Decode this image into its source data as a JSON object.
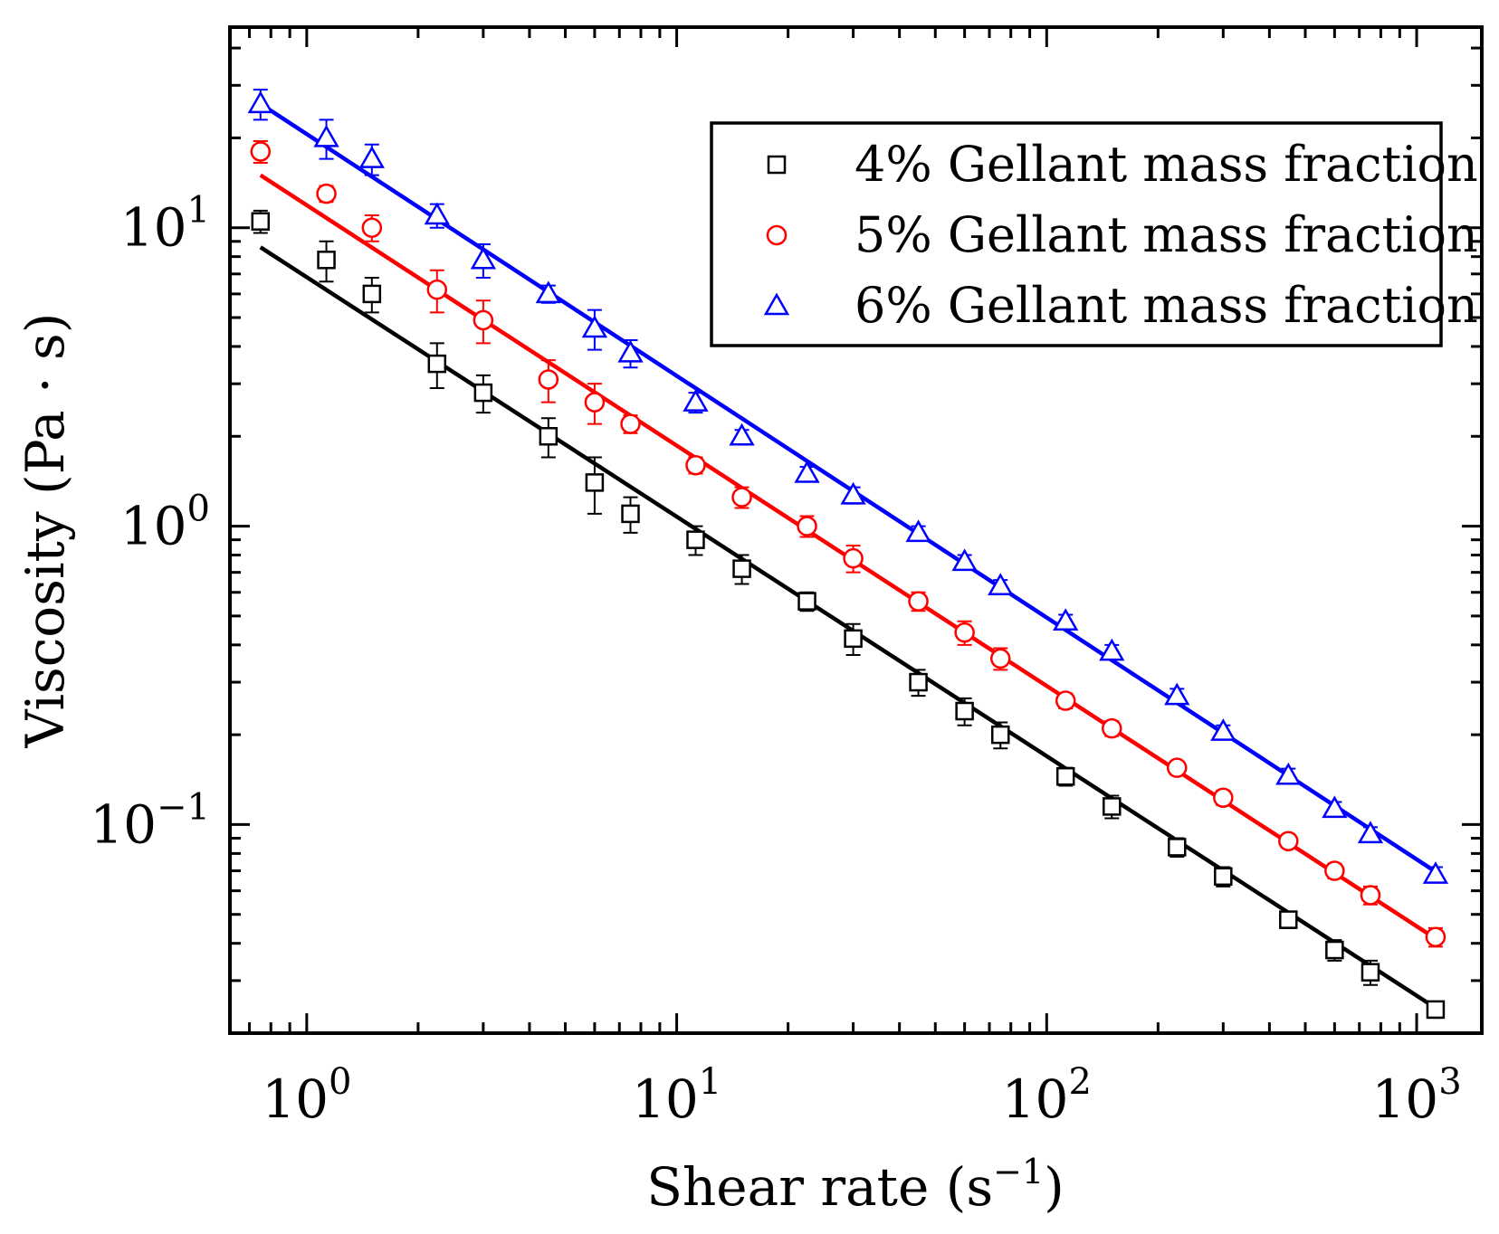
{
  "chart_data": {
    "type": "scatter",
    "x_scale": "log",
    "y_scale": "log",
    "xlabel": "Shear rate (s",
    "xlabel_sup": "−1",
    "xlabel_end": ")",
    "ylabel": "Viscosity (Pa · s)",
    "xlim": [
      0.62,
      1500
    ],
    "ylim": [
      0.02,
      47
    ],
    "x_ticks": [
      {
        "value": 1,
        "base": "10",
        "exp": "0"
      },
      {
        "value": 10,
        "base": "10",
        "exp": "1"
      },
      {
        "value": 100,
        "base": "10",
        "exp": "2"
      },
      {
        "value": 1000,
        "base": "10",
        "exp": "3"
      }
    ],
    "y_ticks": [
      {
        "value": 0.1,
        "base": "10",
        "exp": "−1"
      },
      {
        "value": 1,
        "base": "10",
        "exp": "0"
      },
      {
        "value": 10,
        "base": "10",
        "exp": "1"
      }
    ],
    "legend_position": "top-right",
    "series": [
      {
        "name": "4% Gellant mass fraction",
        "color": "#000000",
        "marker": "square",
        "x": [
          0.75,
          1.13,
          1.5,
          2.25,
          3.0,
          4.5,
          6.0,
          7.5,
          11.25,
          15.0,
          22.5,
          30.0,
          45.0,
          60.0,
          75.0,
          112.5,
          150.0,
          225.0,
          300.0,
          450.0,
          600.0,
          750.0,
          1125.0
        ],
        "y": [
          10.5,
          7.8,
          6.0,
          3.5,
          2.8,
          2.0,
          1.4,
          1.1,
          0.9,
          0.72,
          0.56,
          0.42,
          0.3,
          0.24,
          0.2,
          0.145,
          0.115,
          0.084,
          0.067,
          0.048,
          0.038,
          0.032,
          0.024
        ],
        "err": [
          0.9,
          1.2,
          0.8,
          0.6,
          0.4,
          0.3,
          0.3,
          0.15,
          0.1,
          0.08,
          0.04,
          0.05,
          0.03,
          0.025,
          0.02,
          0.01,
          0.01,
          0.006,
          0.005,
          0.003,
          0.003,
          0.003,
          0.0015
        ],
        "fit": {
          "x0": 0.75,
          "y0": 8.6,
          "x1": 1125.0,
          "y1": 0.0243
        }
      },
      {
        "name": "5% Gellant mass fraction",
        "color": "#ff0000",
        "marker": "circle",
        "x": [
          0.75,
          1.13,
          1.5,
          2.25,
          3.0,
          4.5,
          6.0,
          7.5,
          11.25,
          15.0,
          22.5,
          30.0,
          45.0,
          60.0,
          75.0,
          112.5,
          150.0,
          225.0,
          300.0,
          450.0,
          600.0,
          750.0,
          1125.0
        ],
        "y": [
          18.0,
          13.0,
          10.0,
          6.2,
          4.9,
          3.1,
          2.6,
          2.2,
          1.6,
          1.25,
          1.0,
          0.78,
          0.56,
          0.44,
          0.36,
          0.26,
          0.21,
          0.155,
          0.123,
          0.088,
          0.07,
          0.058,
          0.042
        ],
        "err": [
          1.5,
          0.8,
          1.0,
          1.0,
          0.8,
          0.5,
          0.4,
          0.15,
          0.1,
          0.1,
          0.08,
          0.08,
          0.04,
          0.04,
          0.03,
          0.015,
          0.012,
          0.008,
          0.007,
          0.004,
          0.004,
          0.004,
          0.003
        ],
        "fit": {
          "x0": 0.75,
          "y0": 15.0,
          "x1": 1125.0,
          "y1": 0.0415
        }
      },
      {
        "name": "6% Gellant mass fraction",
        "color": "#0000ff",
        "marker": "triangle",
        "x": [
          0.75,
          1.13,
          1.5,
          2.25,
          3.0,
          4.5,
          6.0,
          7.5,
          11.25,
          15.0,
          22.5,
          30.0,
          45.0,
          60.0,
          75.0,
          112.5,
          150.0,
          225.0,
          300.0,
          450.0,
          600.0,
          750.0,
          1125.0
        ],
        "y": [
          26.0,
          20.0,
          17.0,
          11.0,
          7.8,
          6.0,
          4.6,
          3.8,
          2.6,
          2.0,
          1.5,
          1.27,
          0.95,
          0.76,
          0.63,
          0.48,
          0.38,
          0.27,
          0.205,
          0.146,
          0.113,
          0.093,
          0.068
        ],
        "err": [
          3.0,
          3.0,
          2.0,
          1.0,
          1.0,
          0.4,
          0.7,
          0.4,
          0.2,
          0.1,
          0.08,
          0.08,
          0.05,
          0.04,
          0.03,
          0.025,
          0.02,
          0.015,
          0.01,
          0.008,
          0.006,
          0.005,
          0.004
        ],
        "fit": {
          "x0": 0.75,
          "y0": 26.0,
          "x1": 1125.0,
          "y1": 0.0695
        }
      }
    ]
  }
}
